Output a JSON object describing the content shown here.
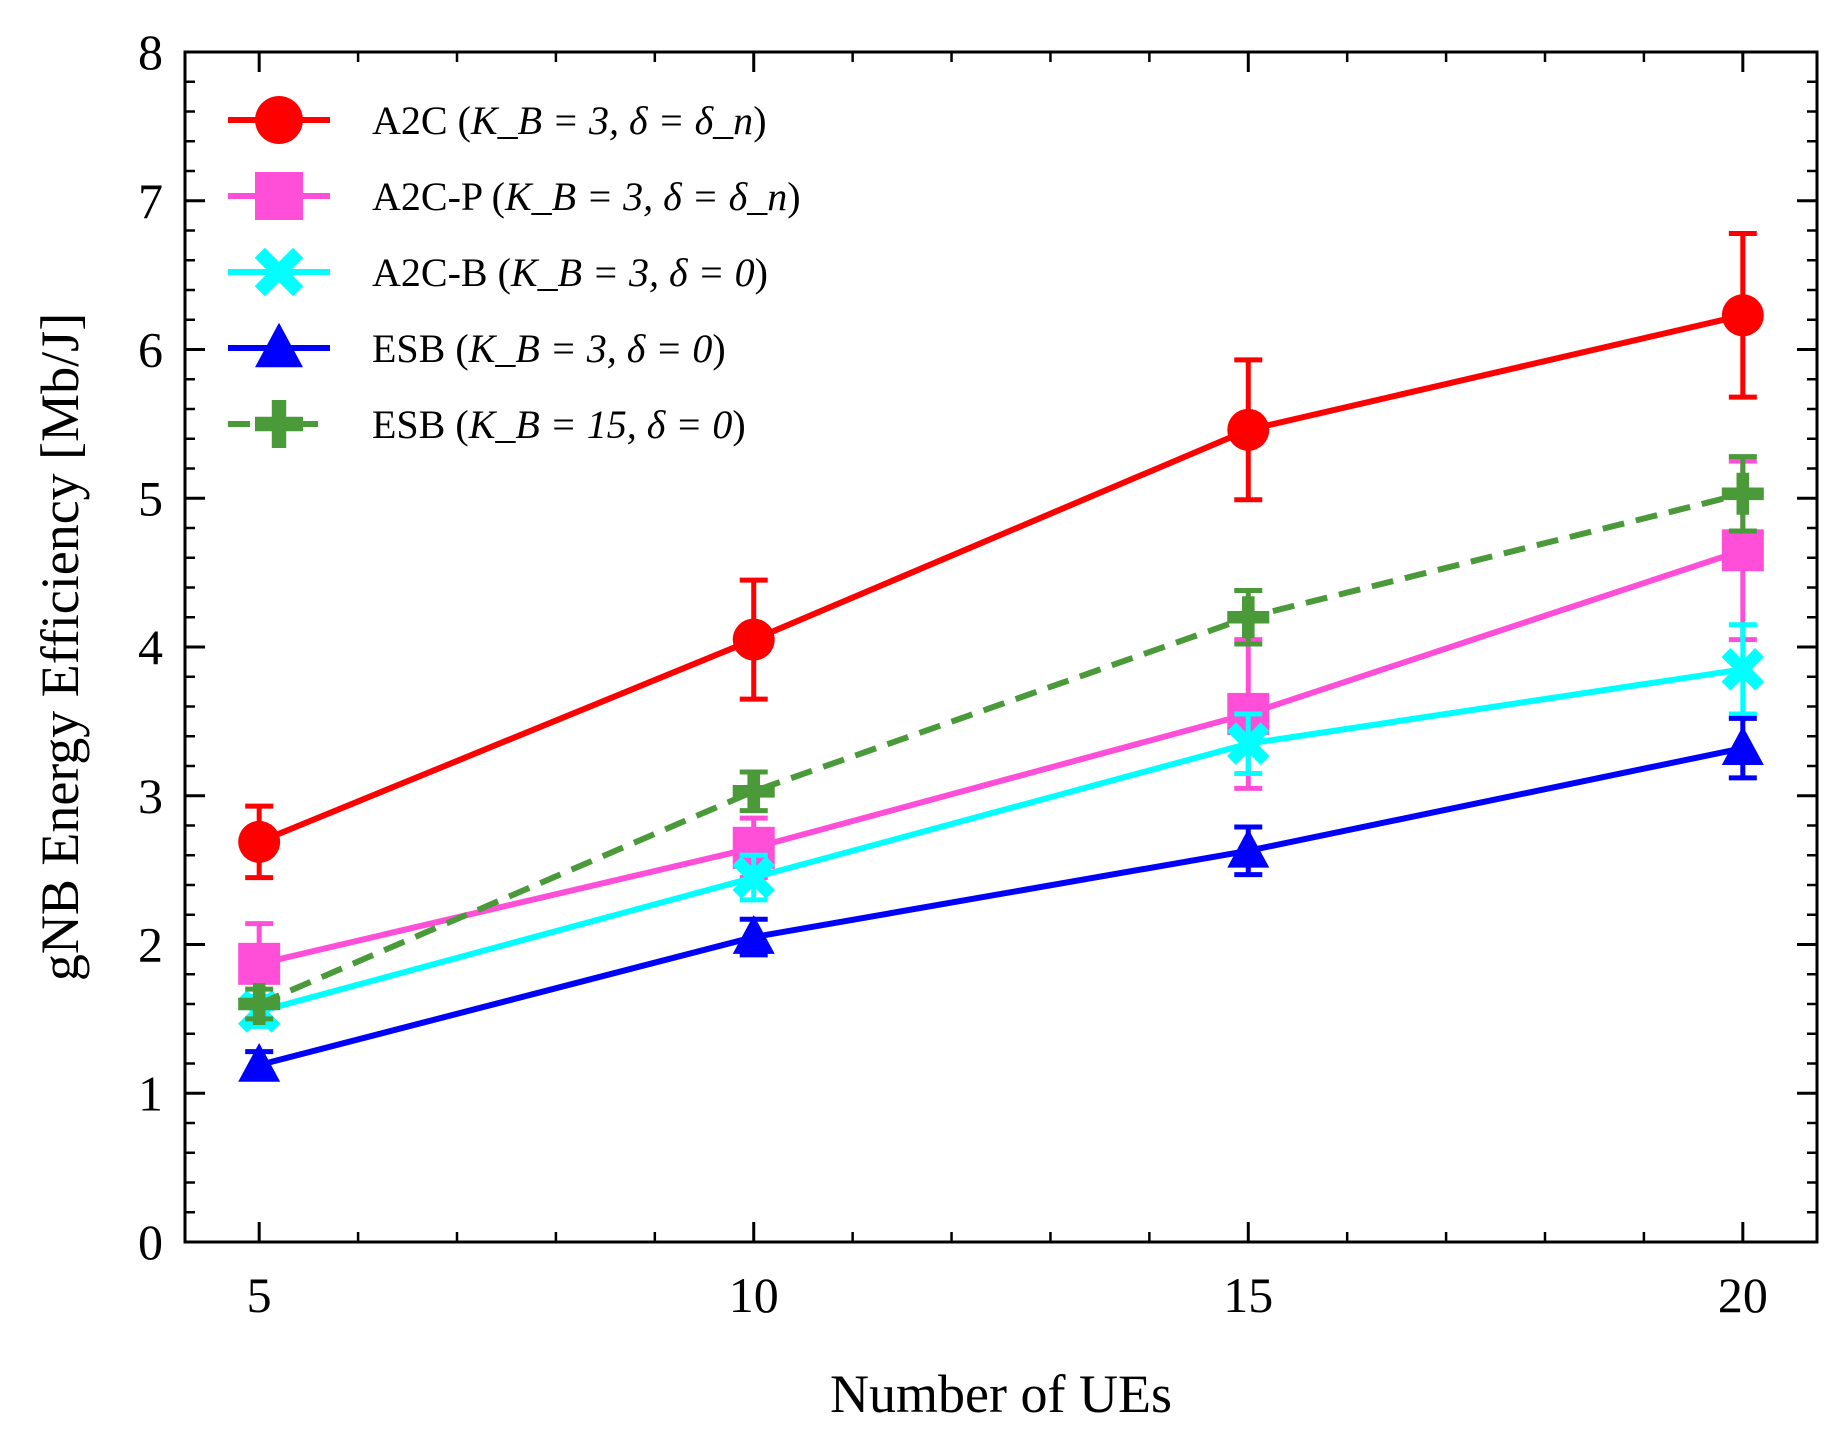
{
  "chart_data": {
    "type": "line",
    "xlabel": "Number of UEs",
    "ylabel": "gNB Energy Efficiency [Mb/J]",
    "x": [
      5,
      10,
      15,
      20
    ],
    "xlim": [
      4.25,
      20.75
    ],
    "ylim": [
      0,
      8
    ],
    "xticks": [
      5,
      10,
      15,
      20
    ],
    "yticks": [
      0,
      1,
      2,
      3,
      4,
      5,
      6,
      7,
      8
    ],
    "grid": false,
    "legend_position": "top-left",
    "series": [
      {
        "legend_prefix": "A2C (",
        "legend_math": "K_B = 3, δ = δ_n",
        "legend_suffix": ")",
        "color": "#ff0000",
        "marker": "circle",
        "linestyle": "solid",
        "values": [
          2.69,
          4.05,
          5.46,
          6.23
        ],
        "err": [
          0.24,
          0.4,
          0.47,
          0.55
        ]
      },
      {
        "legend_prefix": "A2C-P (",
        "legend_math": "K_B = 3, δ = δ_n",
        "legend_suffix": ")",
        "color": "#ff4fd8",
        "marker": "square",
        "linestyle": "solid",
        "values": [
          1.87,
          2.65,
          3.55,
          4.65
        ],
        "err": [
          0.27,
          0.2,
          0.5,
          0.6
        ]
      },
      {
        "legend_prefix": "A2C-B (",
        "legend_math": "K_B = 3, δ = 0",
        "legend_suffix": ")",
        "color": "#00ffff",
        "marker": "x",
        "linestyle": "solid",
        "values": [
          1.55,
          2.45,
          3.35,
          3.85
        ],
        "err": [
          0.1,
          0.15,
          0.2,
          0.3
        ]
      },
      {
        "legend_prefix": "ESB (",
        "legend_math": "K_B = 3, δ = 0",
        "legend_suffix": ")",
        "color": "#0000ff",
        "marker": "triangle",
        "linestyle": "solid",
        "values": [
          1.19,
          2.05,
          2.63,
          3.32
        ],
        "err": [
          0.09,
          0.12,
          0.16,
          0.2
        ]
      },
      {
        "legend_prefix": "ESB (",
        "legend_math": "K_B = 15, δ = 0",
        "legend_suffix": ")",
        "color": "#4a9a3a",
        "marker": "plus",
        "linestyle": "dashed",
        "values": [
          1.6,
          3.03,
          4.2,
          5.03
        ],
        "err": [
          0.1,
          0.13,
          0.18,
          0.25
        ]
      }
    ]
  }
}
